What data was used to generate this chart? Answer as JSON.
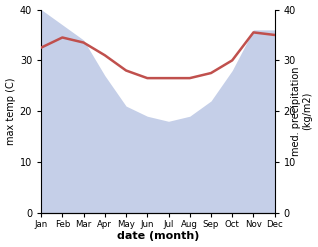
{
  "months": [
    "Jan",
    "Feb",
    "Mar",
    "Apr",
    "May",
    "Jun",
    "Jul",
    "Aug",
    "Sep",
    "Oct",
    "Nov",
    "Dec"
  ],
  "temp": [
    32.5,
    34.5,
    33.5,
    31.0,
    28.0,
    26.5,
    26.5,
    26.5,
    27.5,
    30.0,
    35.5,
    35.0
  ],
  "precip": [
    40,
    37,
    34,
    27,
    21,
    19,
    18,
    19,
    22,
    28,
    36,
    36
  ],
  "temp_color": "#c0504d",
  "precip_color": "#c5cfe8",
  "ylabel_left": "max temp (C)",
  "ylabel_right_top": "med. precipitation",
  "ylabel_right_bottom": "(kg/m2)",
  "xlabel": "date (month)",
  "ylim_left": [
    0,
    40
  ],
  "ylim_right": [
    0,
    40
  ],
  "background_color": "#ffffff",
  "temp_linewidth": 1.8
}
